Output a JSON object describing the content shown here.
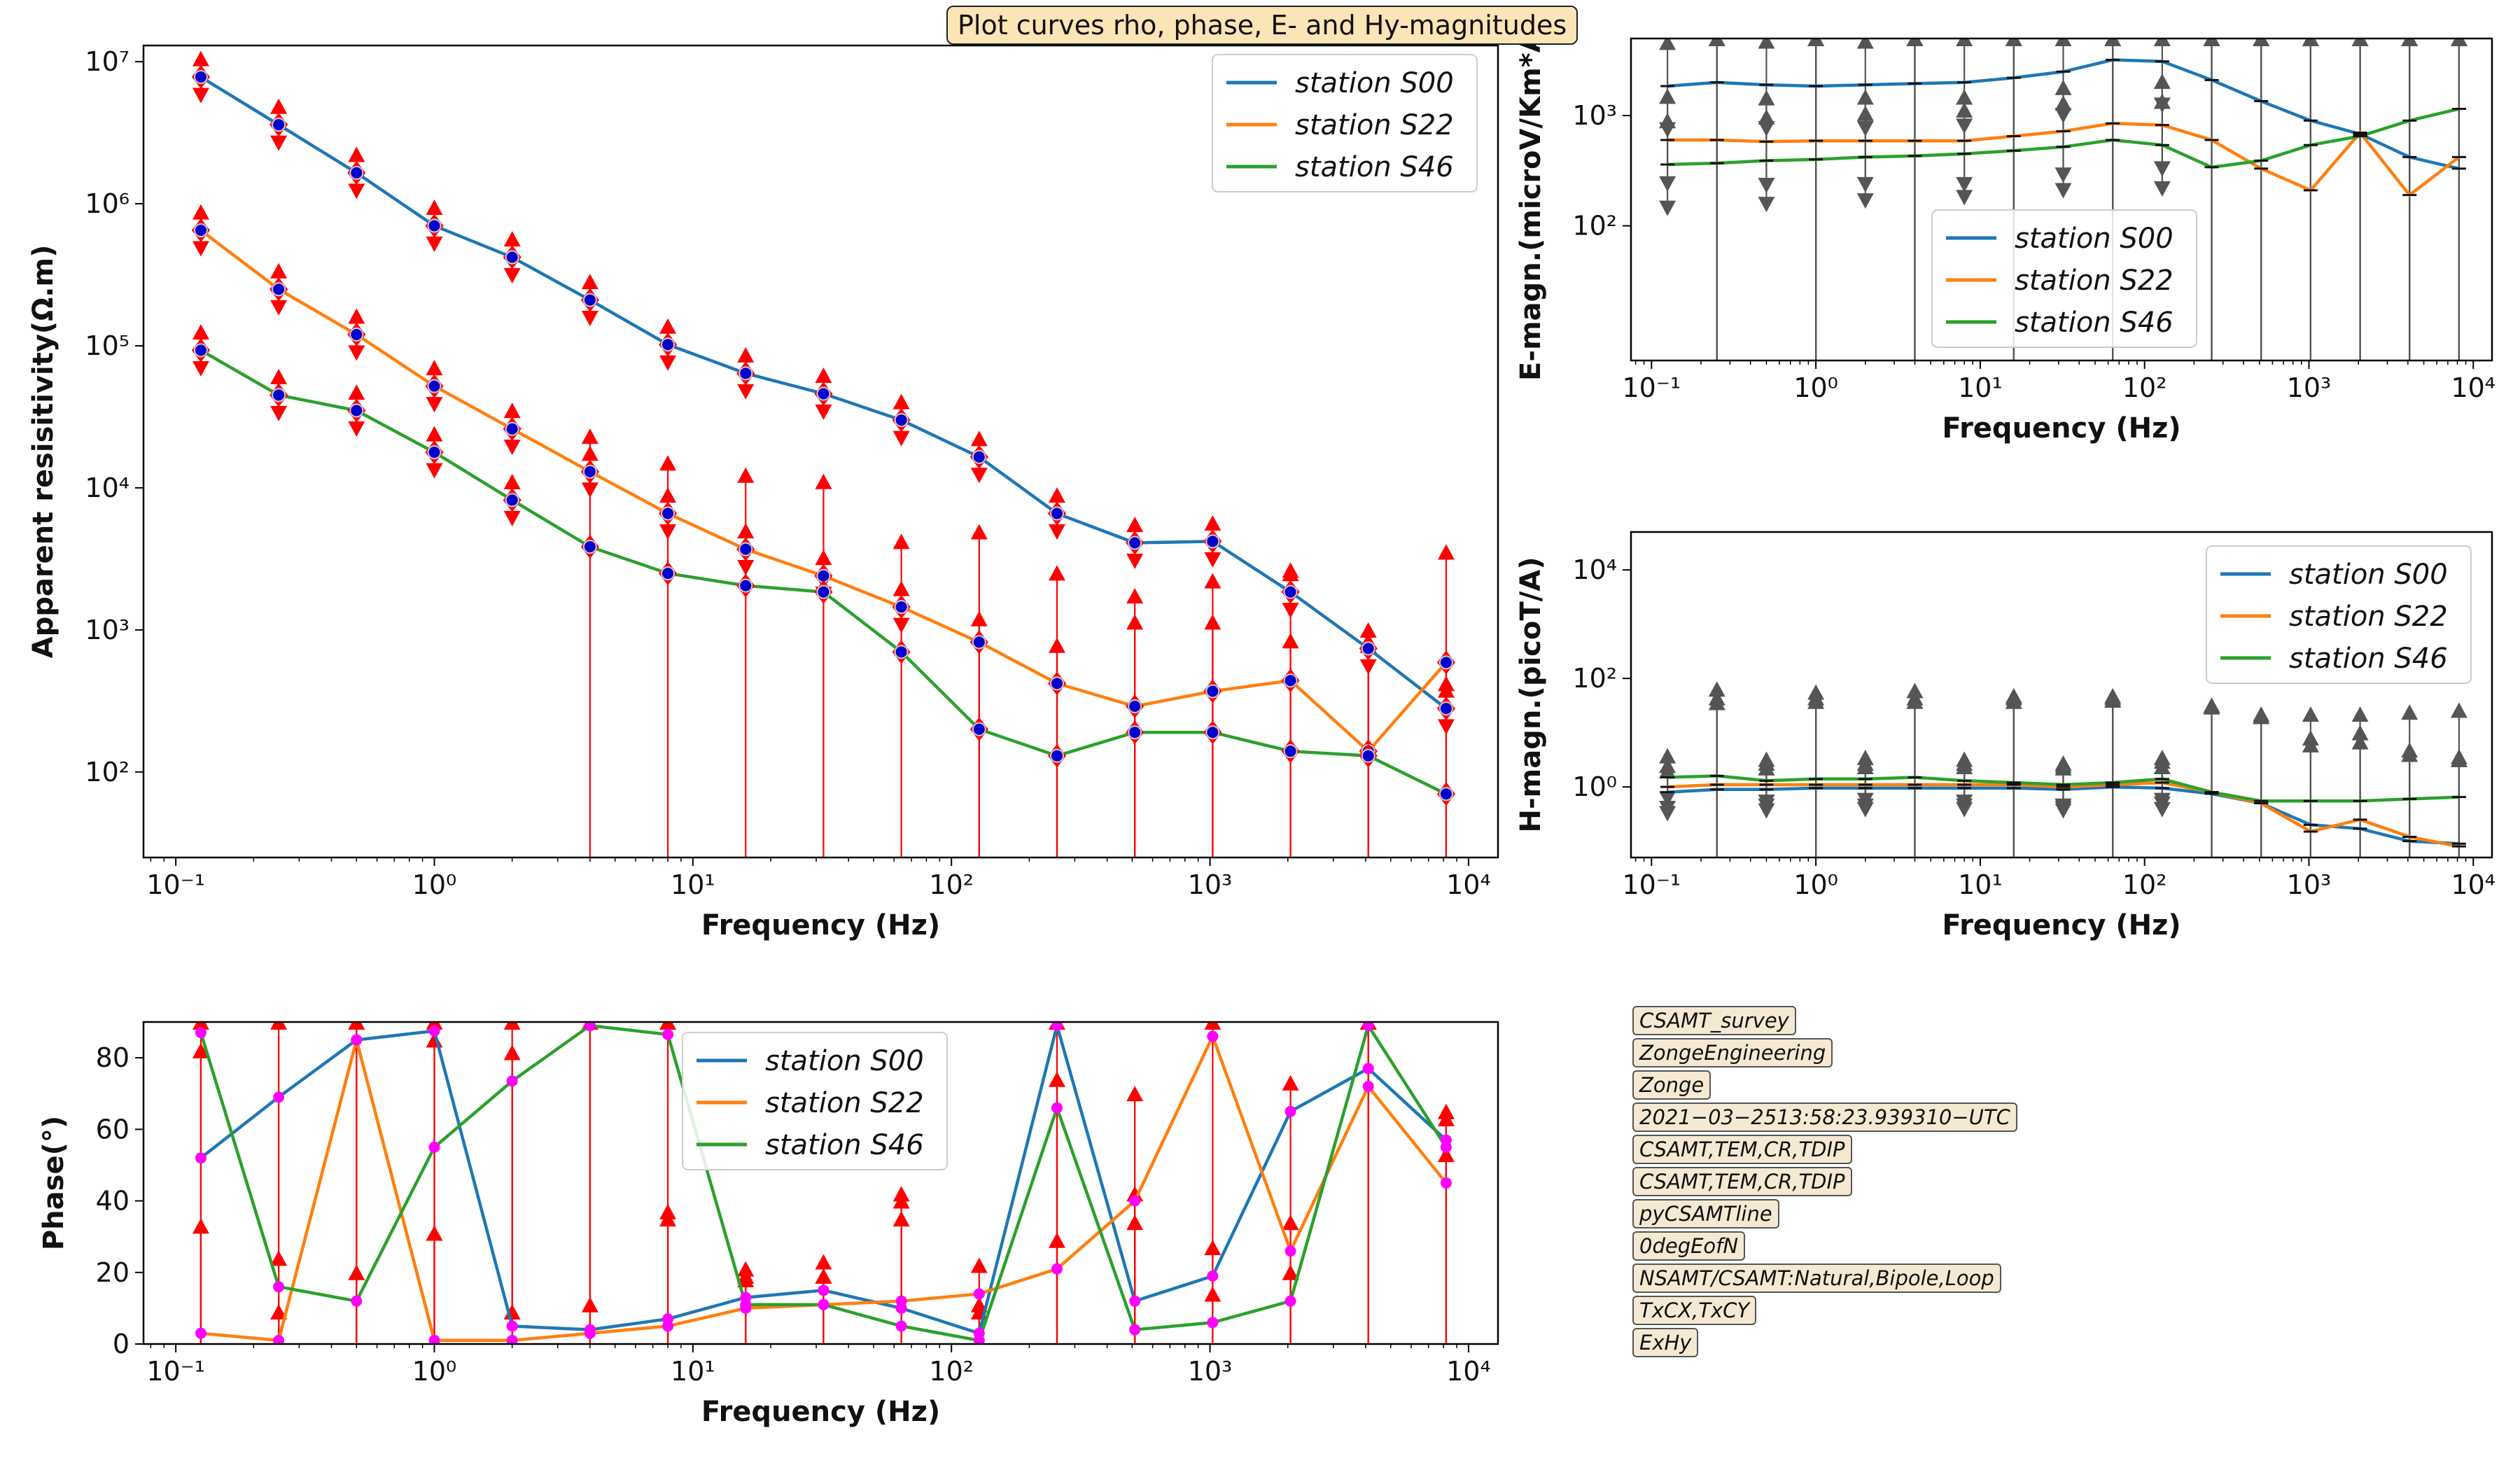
{
  "suptitle": "Plot curves rho, phase, E- and Hy-magnitudes",
  "info_labels": [
    "CSAMT_survey",
    "ZongeEngineering",
    "Zonge",
    "2021−03−2513:58:23.939310−UTC",
    "CSAMT,TEM,CR,TDIP",
    "CSAMT,TEM,CR,TDIP",
    "pyCSAMTline",
    "0degEofN",
    "NSAMT/CSAMT:Natural,Bipole,Loop",
    "TxCX,TxCY",
    "ExHy"
  ],
  "colors": {
    "s00": "#1f77b4",
    "s22": "#ff7f0e",
    "s46": "#2ca02c",
    "errbar_rho": "#ff0000",
    "errbar_mag": "#555555",
    "marker_phase": "#ff00ff",
    "marker_rho": "#0000cc"
  },
  "chart_data": [
    {
      "id": "rho",
      "type": "line",
      "title": "",
      "xlabel": "Frequency (Hz)",
      "ylabel": "Apparent resisitivity(Ω.m)",
      "xscale": "log",
      "yscale": "log",
      "xlim": [
        0.075,
        13000
      ],
      "ylim": [
        25,
        13000000
      ],
      "xticks": [
        {
          "v": 0.1,
          "l": "10⁻¹"
        },
        {
          "v": 1,
          "l": "10⁰"
        },
        {
          "v": 10,
          "l": "10¹"
        },
        {
          "v": 100,
          "l": "10²"
        },
        {
          "v": 1000,
          "l": "10³"
        },
        {
          "v": 10000,
          "l": "10⁴"
        }
      ],
      "yticks": [
        {
          "v": 100,
          "l": "10²"
        },
        {
          "v": 1000,
          "l": "10³"
        },
        {
          "v": 10000,
          "l": "10⁴"
        },
        {
          "v": 100000,
          "l": "10⁵"
        },
        {
          "v": 1000000,
          "l": "10⁶"
        },
        {
          "v": 10000000,
          "l": "10⁷"
        }
      ],
      "legend": "top-right",
      "x": [
        0.125,
        0.25,
        0.5,
        1,
        2,
        4,
        8,
        16,
        32,
        64,
        128,
        256,
        512,
        1024,
        2048,
        4096,
        8192
      ],
      "series": [
        {
          "name": "station S00",
          "key": "s00",
          "values": [
            7800000,
            3600000,
            1650000,
            700000,
            420000,
            210000,
            102000,
            64000,
            46000,
            30000,
            16500,
            6600,
            4100,
            4200,
            1850,
            740,
            280
          ]
        },
        {
          "name": "station S22",
          "key": "s22",
          "values": [
            650000,
            250000,
            120000,
            52000,
            26000,
            13000,
            6600,
            3700,
            2400,
            1450,
            820,
            420,
            290,
            370,
            440,
            140,
            590
          ]
        },
        {
          "name": "station S46",
          "key": "s46",
          "values": [
            93000,
            45000,
            35000,
            17800,
            8200,
            3850,
            2500,
            2050,
            1850,
            700,
            200,
            130,
            190,
            190,
            140,
            130,
            70
          ]
        }
      ]
    },
    {
      "id": "emag",
      "type": "line",
      "title": "",
      "xlabel": "Frequency (Hz)",
      "ylabel": "E-magn.(microV/Km*A)",
      "xscale": "log",
      "yscale": "log",
      "xlim": [
        0.075,
        13000
      ],
      "ylim": [
        6,
        5000
      ],
      "xticks": [
        {
          "v": 0.1,
          "l": "10⁻¹"
        },
        {
          "v": 1,
          "l": "10⁰"
        },
        {
          "v": 10,
          "l": "10¹"
        },
        {
          "v": 100,
          "l": "10²"
        },
        {
          "v": 1000,
          "l": "10³"
        },
        {
          "v": 10000,
          "l": "10⁴"
        }
      ],
      "yticks": [
        {
          "v": 100,
          "l": "10²"
        },
        {
          "v": 1000,
          "l": "10³"
        }
      ],
      "legend": "center",
      "x": [
        0.125,
        0.25,
        0.5,
        1,
        2,
        4,
        8,
        16,
        32,
        64,
        128,
        256,
        512,
        1024,
        2048,
        4096,
        8192
      ],
      "series": [
        {
          "name": "station S00",
          "key": "s00",
          "values": [
            1850,
            2000,
            1900,
            1850,
            1900,
            1950,
            2000,
            2200,
            2500,
            3200,
            3100,
            2100,
            1350,
            900,
            680,
            420,
            330
          ]
        },
        {
          "name": "station S22",
          "key": "s22",
          "values": [
            600,
            600,
            580,
            590,
            590,
            590,
            590,
            650,
            720,
            850,
            820,
            600,
            330,
            210,
            700,
            190,
            420
          ]
        },
        {
          "name": "station S46",
          "key": "s46",
          "values": [
            360,
            370,
            390,
            400,
            420,
            430,
            450,
            480,
            520,
            600,
            540,
            340,
            390,
            540,
            650,
            900,
            1150
          ]
        }
      ]
    },
    {
      "id": "hmag",
      "type": "line",
      "title": "",
      "xlabel": "Frequency (Hz)",
      "ylabel": "H-magn.(picoT/A)",
      "xscale": "log",
      "yscale": "log",
      "xlim": [
        0.075,
        13000
      ],
      "ylim": [
        0.05,
        50000
      ],
      "xticks": [
        {
          "v": 0.1,
          "l": "10⁻¹"
        },
        {
          "v": 1,
          "l": "10⁰"
        },
        {
          "v": 10,
          "l": "10¹"
        },
        {
          "v": 100,
          "l": "10²"
        },
        {
          "v": 1000,
          "l": "10³"
        },
        {
          "v": 10000,
          "l": "10⁴"
        }
      ],
      "yticks": [
        {
          "v": 1,
          "l": "10⁰"
        },
        {
          "v": 100,
          "l": "10²"
        },
        {
          "v": 10000,
          "l": "10⁴"
        }
      ],
      "legend": "top-right",
      "x": [
        0.125,
        0.25,
        0.5,
        1,
        2,
        4,
        8,
        16,
        32,
        64,
        128,
        256,
        512,
        1024,
        2048,
        4096,
        8192
      ],
      "series": [
        {
          "name": "station S00",
          "key": "s00",
          "values": [
            0.8,
            0.9,
            0.9,
            0.95,
            0.95,
            0.95,
            0.95,
            0.95,
            0.9,
            1.0,
            0.95,
            0.75,
            0.5,
            0.2,
            0.17,
            0.1,
            0.09
          ]
        },
        {
          "name": "station S22",
          "key": "s22",
          "values": [
            1.0,
            1.1,
            1.1,
            1.1,
            1.1,
            1.1,
            1.1,
            1.1,
            1.0,
            1.1,
            1.2,
            0.8,
            0.5,
            0.15,
            0.25,
            0.12,
            0.08
          ]
        },
        {
          "name": "station S46",
          "key": "s46",
          "values": [
            1.5,
            1.6,
            1.3,
            1.4,
            1.4,
            1.5,
            1.3,
            1.2,
            1.1,
            1.2,
            1.4,
            0.8,
            0.55,
            0.55,
            0.55,
            0.6,
            0.65
          ]
        }
      ]
    },
    {
      "id": "phase",
      "type": "line",
      "title": "",
      "xlabel": "Frequency (Hz)",
      "ylabel": "Phase(°)",
      "xscale": "log",
      "yscale": "linear",
      "xlim": [
        0.075,
        13000
      ],
      "ylim": [
        0,
        90
      ],
      "xticks": [
        {
          "v": 0.1,
          "l": "10⁻¹"
        },
        {
          "v": 1,
          "l": "10⁰"
        },
        {
          "v": 10,
          "l": "10¹"
        },
        {
          "v": 100,
          "l": "10²"
        },
        {
          "v": 1000,
          "l": "10³"
        },
        {
          "v": 10000,
          "l": "10⁴"
        }
      ],
      "yticks": [
        {
          "v": 0,
          "l": "0"
        },
        {
          "v": 20,
          "l": "20"
        },
        {
          "v": 40,
          "l": "40"
        },
        {
          "v": 60,
          "l": "60"
        },
        {
          "v": 80,
          "l": "80"
        }
      ],
      "legend": "top-center",
      "x": [
        0.125,
        0.25,
        0.5,
        1,
        2,
        4,
        8,
        16,
        32,
        64,
        128,
        256,
        512,
        1024,
        2048,
        4096,
        8192
      ],
      "series": [
        {
          "name": "station S00",
          "key": "s00",
          "values": [
            52,
            69,
            85,
            87.5,
            5,
            4,
            7,
            13,
            15,
            10,
            3,
            89,
            12,
            19,
            65,
            77,
            57
          ]
        },
        {
          "name": "station S22",
          "key": "s22",
          "values": [
            3,
            1,
            85,
            1,
            1,
            3,
            5,
            10,
            11,
            12,
            14,
            21,
            40,
            86,
            26,
            72,
            45
          ]
        },
        {
          "name": "station S46",
          "key": "s46",
          "values": [
            87,
            16,
            12,
            55,
            73.5,
            89,
            86.5,
            11,
            11,
            5,
            1,
            66,
            4,
            6,
            12,
            89,
            55
          ]
        }
      ]
    }
  ]
}
